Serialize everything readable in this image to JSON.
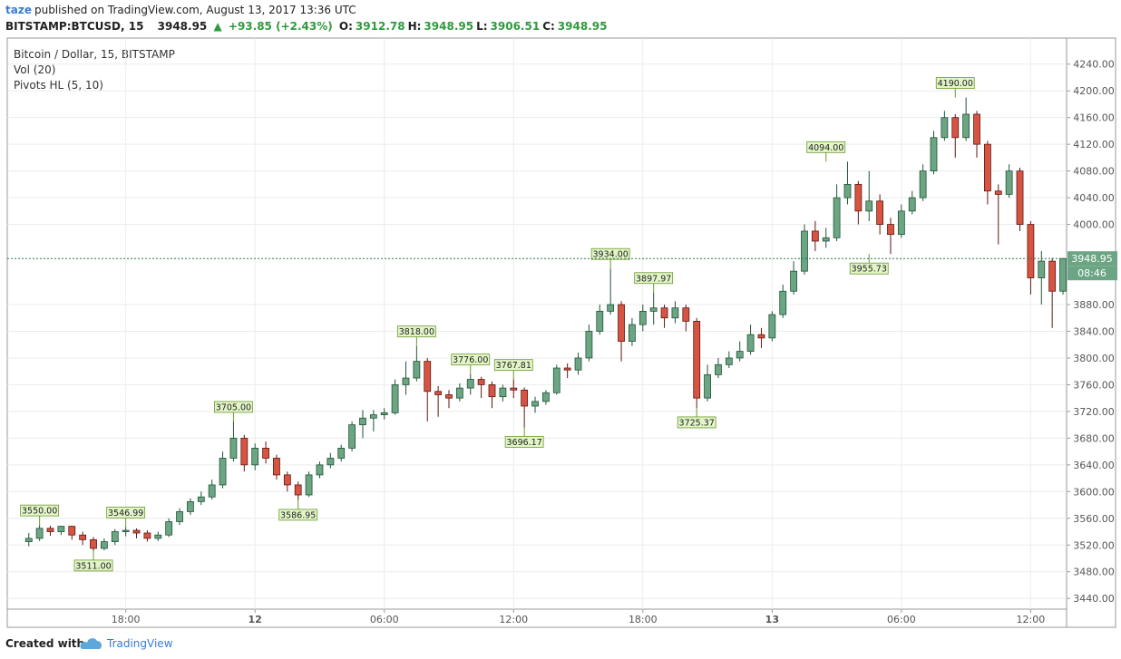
{
  "header": {
    "author": "taze",
    "published": "published on TradingView.com, August 13, 2017 13:36 UTC",
    "symbol": "BITSTAMP:BTCUSD, 15",
    "price": "3948.95",
    "change": "+93.85 (+2.43%)",
    "ohlc": [
      {
        "label": "O:",
        "value": "3912.78"
      },
      {
        "label": "H:",
        "value": "3948.95"
      },
      {
        "label": "L:",
        "value": "3906.51"
      },
      {
        "label": "C:",
        "value": "3948.95"
      }
    ]
  },
  "legend": [
    "Bitcoin / Dollar, 15, BITSTAMP",
    "Vol (20)",
    "Pivots HL (5, 10)"
  ],
  "footer": {
    "created": "Created with",
    "brand": "TradingView"
  },
  "chart_data": {
    "type": "candlestick",
    "up_color": "#6ba583",
    "down_color": "#d75442",
    "grid": true,
    "x": [
      "2017-08-11T13:30",
      "2017-08-11T14:00",
      "2017-08-11T14:30",
      "2017-08-11T15:00",
      "2017-08-11T15:30",
      "2017-08-11T16:00",
      "2017-08-11T16:30",
      "2017-08-11T17:00",
      "2017-08-11T17:30",
      "2017-08-11T18:00",
      "2017-08-11T18:30",
      "2017-08-11T19:00",
      "2017-08-11T19:30",
      "2017-08-11T20:00",
      "2017-08-11T20:30",
      "2017-08-11T21:00",
      "2017-08-11T21:30",
      "2017-08-11T22:00",
      "2017-08-11T22:30",
      "2017-08-11T23:00",
      "2017-08-11T23:30",
      "2017-08-12T00:00",
      "2017-08-12T00:30",
      "2017-08-12T01:00",
      "2017-08-12T01:30",
      "2017-08-12T02:00",
      "2017-08-12T02:30",
      "2017-08-12T03:00",
      "2017-08-12T03:30",
      "2017-08-12T04:00",
      "2017-08-12T04:30",
      "2017-08-12T05:00",
      "2017-08-12T05:30",
      "2017-08-12T06:00",
      "2017-08-12T06:30",
      "2017-08-12T07:00",
      "2017-08-12T07:30",
      "2017-08-12T08:00",
      "2017-08-12T08:30",
      "2017-08-12T09:00",
      "2017-08-12T09:30",
      "2017-08-12T10:00",
      "2017-08-12T10:30",
      "2017-08-12T11:00",
      "2017-08-12T11:30",
      "2017-08-12T12:00",
      "2017-08-12T12:30",
      "2017-08-12T13:00",
      "2017-08-12T13:30",
      "2017-08-12T14:00",
      "2017-08-12T14:30",
      "2017-08-12T15:00",
      "2017-08-12T15:30",
      "2017-08-12T16:00",
      "2017-08-12T16:30",
      "2017-08-12T17:00",
      "2017-08-12T17:30",
      "2017-08-12T18:00",
      "2017-08-12T18:30",
      "2017-08-12T19:00",
      "2017-08-12T19:30",
      "2017-08-12T20:00",
      "2017-08-12T20:30",
      "2017-08-12T21:00",
      "2017-08-12T21:30",
      "2017-08-12T22:00",
      "2017-08-12T22:30",
      "2017-08-12T23:00",
      "2017-08-12T23:30",
      "2017-08-13T00:00",
      "2017-08-13T00:30",
      "2017-08-13T01:00",
      "2017-08-13T01:30",
      "2017-08-13T02:00",
      "2017-08-13T02:30",
      "2017-08-13T03:00",
      "2017-08-13T03:30",
      "2017-08-13T04:00",
      "2017-08-13T04:30",
      "2017-08-13T05:00",
      "2017-08-13T05:30",
      "2017-08-13T06:00",
      "2017-08-13T06:30",
      "2017-08-13T07:00",
      "2017-08-13T07:30",
      "2017-08-13T08:00",
      "2017-08-13T08:30",
      "2017-08-13T09:00",
      "2017-08-13T09:30",
      "2017-08-13T10:00",
      "2017-08-13T10:30",
      "2017-08-13T11:00",
      "2017-08-13T11:30",
      "2017-08-13T12:00",
      "2017-08-13T12:30",
      "2017-08-13T13:00",
      "2017-08-13T13:30"
    ],
    "open": [
      3525,
      3530,
      3545,
      3540,
      3548,
      3535,
      3528,
      3515,
      3525,
      3540,
      3542,
      3538,
      3530,
      3535,
      3555,
      3570,
      3585,
      3592,
      3610,
      3650,
      3680,
      3640,
      3665,
      3650,
      3625,
      3610,
      3595,
      3625,
      3640,
      3650,
      3665,
      3700,
      3710,
      3715,
      3718,
      3760,
      3770,
      3795,
      3750,
      3745,
      3740,
      3755,
      3768,
      3760,
      3742,
      3755,
      3752,
      3728,
      3735,
      3748,
      3785,
      3782,
      3800,
      3840,
      3870,
      3880,
      3825,
      3850,
      3870,
      3875,
      3860,
      3875,
      3855,
      3740,
      3775,
      3790,
      3800,
      3810,
      3835,
      3830,
      3865,
      3900,
      3930,
      3990,
      3975,
      3980,
      4040,
      4060,
      4020,
      4035,
      4000,
      3985,
      4020,
      4040,
      4080,
      4130,
      4160,
      4130,
      4165,
      4120,
      4050,
      4045,
      4080,
      4000,
      3920,
      3945,
      3900
    ],
    "high": [
      3538,
      3550,
      3549,
      3549,
      3549,
      3540,
      3532,
      3530,
      3544,
      3546.99,
      3545,
      3542,
      3540,
      3560,
      3575,
      3590,
      3600,
      3618,
      3660,
      3705,
      3685,
      3672,
      3675,
      3655,
      3630,
      3615,
      3630,
      3645,
      3658,
      3670,
      3705,
      3722,
      3722,
      3725,
      3768,
      3795,
      3818,
      3800,
      3758,
      3752,
      3762,
      3776,
      3772,
      3765,
      3760,
      3767.81,
      3756,
      3742,
      3752,
      3790,
      3792,
      3808,
      3850,
      3880,
      3934,
      3885,
      3860,
      3880,
      3897.97,
      3880,
      3885,
      3880,
      3860,
      3790,
      3800,
      3810,
      3825,
      3850,
      3845,
      3870,
      3910,
      3945,
      4000,
      4005,
      3995,
      4060,
      4094,
      4065,
      4080,
      4045,
      4010,
      4030,
      4050,
      4090,
      4140,
      4170,
      4165,
      4190,
      4170,
      4125,
      4060,
      4090,
      4085,
      4005,
      3960,
      3950,
      3948.95
    ],
    "low": [
      3518,
      3526,
      3534,
      3535,
      3528,
      3520,
      3511,
      3512,
      3520,
      3533,
      3530,
      3525,
      3526,
      3532,
      3550,
      3565,
      3580,
      3588,
      3605,
      3645,
      3630,
      3632,
      3642,
      3618,
      3600,
      3586.95,
      3592,
      3620,
      3635,
      3645,
      3660,
      3680,
      3690,
      3708,
      3715,
      3745,
      3765,
      3705,
      3712,
      3725,
      3735,
      3745,
      3740,
      3725,
      3735,
      3740,
      3696.17,
      3718,
      3730,
      3745,
      3770,
      3775,
      3795,
      3835,
      3865,
      3795,
      3818,
      3840,
      3850,
      3845,
      3852,
      3840,
      3725.37,
      3735,
      3770,
      3785,
      3795,
      3805,
      3815,
      3825,
      3860,
      3895,
      3925,
      3960,
      3965,
      3975,
      4030,
      4000,
      4005,
      3985,
      3955.73,
      3980,
      4015,
      4035,
      4075,
      4125,
      4100,
      4125,
      4100,
      4030,
      3970,
      4040,
      3990,
      3895,
      3880,
      3845,
      3895
    ],
    "close": [
      3530,
      3545,
      3540,
      3548,
      3535,
      3528,
      3515,
      3525,
      3540,
      3542,
      3538,
      3530,
      3535,
      3555,
      3570,
      3585,
      3592,
      3610,
      3650,
      3680,
      3640,
      3665,
      3650,
      3625,
      3610,
      3595,
      3625,
      3640,
      3650,
      3665,
      3700,
      3710,
      3715,
      3718,
      3760,
      3770,
      3795,
      3750,
      3745,
      3740,
      3755,
      3768,
      3760,
      3742,
      3755,
      3752,
      3728,
      3735,
      3748,
      3785,
      3782,
      3800,
      3840,
      3870,
      3880,
      3825,
      3850,
      3870,
      3875,
      3860,
      3875,
      3855,
      3740,
      3775,
      3790,
      3800,
      3810,
      3835,
      3830,
      3865,
      3900,
      3930,
      3990,
      3975,
      3980,
      4040,
      4060,
      4020,
      4035,
      4000,
      3985,
      4020,
      4040,
      4080,
      4130,
      4160,
      4130,
      4165,
      4120,
      4050,
      4045,
      4080,
      4000,
      3920,
      3945,
      3900,
      3948.95
    ],
    "pivots": [
      {
        "x": "2017-08-11T14:00",
        "value": 3550,
        "label": "3550.00",
        "kind": "high"
      },
      {
        "x": "2017-08-11T16:30",
        "value": 3511,
        "label": "3511.00",
        "kind": "low"
      },
      {
        "x": "2017-08-11T18:00",
        "value": 3546.99,
        "label": "3546.99",
        "kind": "high"
      },
      {
        "x": "2017-08-11T23:00",
        "value": 3705,
        "label": "3705.00",
        "kind": "high"
      },
      {
        "x": "2017-08-12T02:00",
        "value": 3586.95,
        "label": "3586.95",
        "kind": "low"
      },
      {
        "x": "2017-08-12T07:30",
        "value": 3818,
        "label": "3818.00",
        "kind": "high"
      },
      {
        "x": "2017-08-12T10:00",
        "value": 3776,
        "label": "3776.00",
        "kind": "high"
      },
      {
        "x": "2017-08-12T12:00",
        "value": 3767.81,
        "label": "3767.81",
        "kind": "high"
      },
      {
        "x": "2017-08-12T12:30",
        "value": 3696.17,
        "label": "3696.17",
        "kind": "low"
      },
      {
        "x": "2017-08-12T16:30",
        "value": 3934,
        "label": "3934.00",
        "kind": "high"
      },
      {
        "x": "2017-08-12T18:30",
        "value": 3897.97,
        "label": "3897.97",
        "kind": "high"
      },
      {
        "x": "2017-08-12T20:30",
        "value": 3725.37,
        "label": "3725.37",
        "kind": "low"
      },
      {
        "x": "2017-08-13T02:30",
        "value": 4094,
        "label": "4094.00",
        "kind": "high"
      },
      {
        "x": "2017-08-13T04:30",
        "value": 3955.73,
        "label": "3955.73",
        "kind": "low"
      },
      {
        "x": "2017-08-13T08:30",
        "value": 4190,
        "label": "4190.00",
        "kind": "high"
      }
    ],
    "last_price": {
      "value": 3948.95,
      "label": "3948.95"
    },
    "countdown": "08:46",
    "xlim": [
      "2017-08-11T12:30",
      "2017-08-13T13:40"
    ],
    "xticks": [
      {
        "value": "2017-08-11T18:00",
        "label": "18:00"
      },
      {
        "value": "2017-08-12T00:00",
        "label": "12"
      },
      {
        "value": "2017-08-12T06:00",
        "label": "06:00"
      },
      {
        "value": "2017-08-12T12:00",
        "label": "12:00"
      },
      {
        "value": "2017-08-12T18:00",
        "label": "18:00"
      },
      {
        "value": "2017-08-13T00:00",
        "label": "13"
      },
      {
        "value": "2017-08-13T06:00",
        "label": "06:00"
      },
      {
        "value": "2017-08-13T12:00",
        "label": "12:00"
      }
    ],
    "ylim": [
      3424,
      4279
    ],
    "yticks": [
      {
        "value": 3440,
        "label": "3440.00"
      },
      {
        "value": 3480,
        "label": "3480.00"
      },
      {
        "value": 3520,
        "label": "3520.00"
      },
      {
        "value": 3560,
        "label": "3560.00"
      },
      {
        "value": 3600,
        "label": "3600.00"
      },
      {
        "value": 3640,
        "label": "3640.00"
      },
      {
        "value": 3680,
        "label": "3680.00"
      },
      {
        "value": 3720,
        "label": "3720.00"
      },
      {
        "value": 3760,
        "label": "3760.00"
      },
      {
        "value": 3800,
        "label": "3800.00"
      },
      {
        "value": 3840,
        "label": "3840.00"
      },
      {
        "value": 3880,
        "label": "3880.00"
      },
      {
        "value": 4000,
        "label": "4000.00"
      },
      {
        "value": 4040,
        "label": "4040.00"
      },
      {
        "value": 4080,
        "label": "4080.00"
      },
      {
        "value": 4120,
        "label": "4120.00"
      },
      {
        "value": 4160,
        "label": "4160.00"
      },
      {
        "value": 4200,
        "label": "4200.00"
      },
      {
        "value": 4240,
        "label": "4240.00"
      }
    ]
  }
}
